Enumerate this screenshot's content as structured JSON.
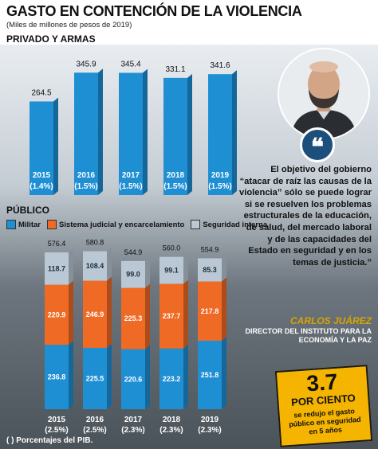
{
  "header": {
    "title": "GASTO EN CONTENCIÓN DE LA VIOLENCIA",
    "subtitle": "(Miles de millones de pesos de 2019)"
  },
  "sections": {
    "private": "PRIVADO Y ARMAS",
    "public": "PÚBLICO"
  },
  "legend": [
    {
      "label": "Militar",
      "color": "#1f8fd4"
    },
    {
      "label": "Sistema judicial y encarcelamiento",
      "color": "#ef6a25"
    },
    {
      "label": "Seguridad interna",
      "color": "#b9c8d4"
    }
  ],
  "footnote": "( ) Porcentajes del PIB.",
  "quote": {
    "text": "El objetivo del gobierno “atacar de raíz las causas de la violencia” sólo se puede lograr si se resuelven los problemas estructurales de la educación, de salud, del mercado laboral y de las capacidades del Estado en seguridad y en los temas de justicia.”",
    "author": "CARLOS JUÁREZ",
    "role": "DIRECTOR DEL INSTITUTO PARA LA ECONOMÍA Y LA PAZ"
  },
  "stat": {
    "value": "3.7",
    "unit": "POR CIENTO",
    "caption": "se redujo el gasto público en seguridad en 5 años"
  },
  "chart_data": [
    {
      "type": "bar",
      "title": "PRIVADO Y ARMAS",
      "categories": [
        "2015",
        "2016",
        "2017",
        "2018",
        "2019"
      ],
      "pct_labels": [
        "(1.4%)",
        "(1.5%)",
        "(1.5%)",
        "(1.5%)",
        "(1.5%)"
      ],
      "values": [
        264.5,
        345.9,
        345.4,
        331.1,
        341.6
      ],
      "value_labels": [
        "264.5",
        "345.9",
        "345.4",
        "331.1",
        "341.6"
      ],
      "color": "#1f8fd4",
      "ylim": [
        0,
        360
      ]
    },
    {
      "type": "bar",
      "stacked": true,
      "title": "PÚBLICO",
      "categories": [
        "2015",
        "2016",
        "2017",
        "2018",
        "2019"
      ],
      "pct_labels": [
        "(2.5%)",
        "(2.5%)",
        "(2.3%)",
        "(2.3%)",
        "(2.3%)"
      ],
      "totals": [
        576.4,
        580.8,
        544.9,
        560.0,
        554.9
      ],
      "total_labels": [
        "576.4",
        "580.8",
        "544.9",
        "560.0",
        "554.9"
      ],
      "series": [
        {
          "name": "Militar",
          "color": "#1f8fd4",
          "values": [
            236.8,
            225.5,
            220.6,
            223.2,
            251.8
          ],
          "labels": [
            "236.8",
            "225.5",
            "220.6",
            "223.2",
            "251.8"
          ]
        },
        {
          "name": "Sistema judicial y encarcelamiento",
          "color": "#ef6a25",
          "values": [
            220.9,
            246.9,
            225.3,
            237.7,
            217.8
          ],
          "labels": [
            "220.9",
            "246.9",
            "225.3",
            "237.7",
            "217.8"
          ]
        },
        {
          "name": "Seguridad interna",
          "color": "#b9c8d4",
          "values": [
            118.7,
            108.4,
            99.0,
            99.1,
            85.3
          ],
          "labels": [
            "118.7",
            "108.4",
            "99.0",
            "99.1",
            "85.3"
          ]
        }
      ],
      "ylim": [
        0,
        600
      ]
    }
  ]
}
